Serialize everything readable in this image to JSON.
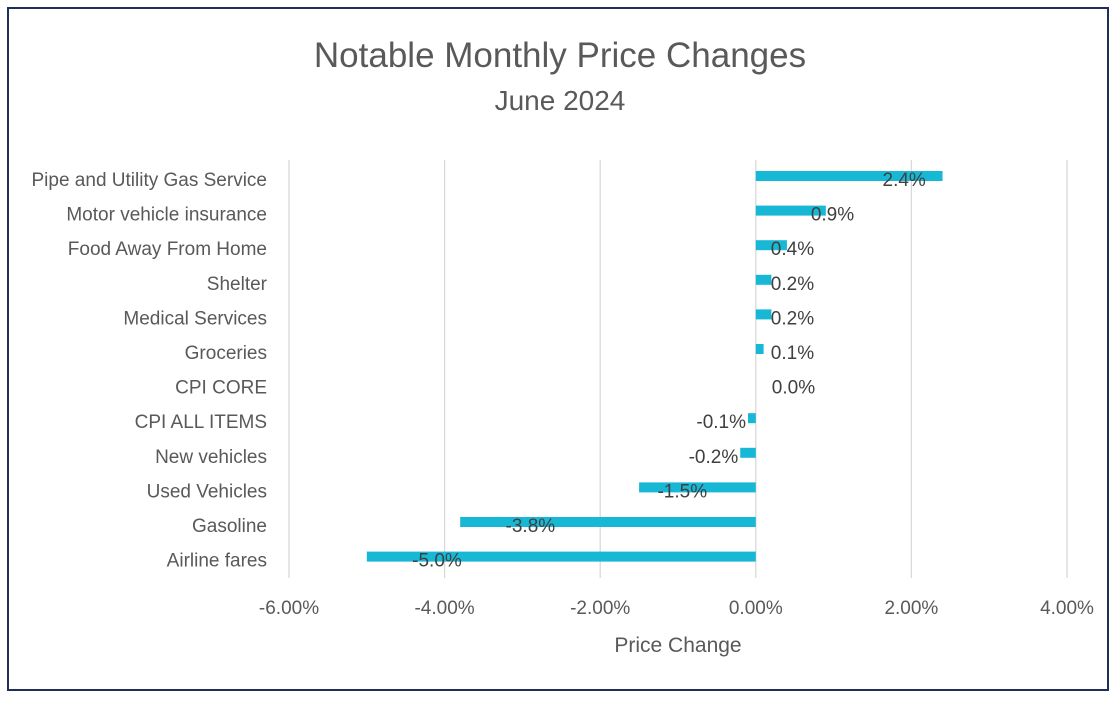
{
  "chart_data": {
    "type": "bar",
    "orientation": "horizontal",
    "title": "Notable Monthly Price Changes",
    "subtitle": "June 2024",
    "xlabel": "Price Change",
    "ylabel": "",
    "xlim": [
      -0.06,
      0.04
    ],
    "x_ticks": [
      -0.06,
      -0.04,
      -0.02,
      0.0,
      0.02,
      0.04
    ],
    "x_tick_labels": [
      "-6.00%",
      "-4.00%",
      "-2.00%",
      "0.00%",
      "2.00%",
      "4.00%"
    ],
    "grid": "vertical",
    "legend": "none",
    "bar_color": "#17b8d6",
    "categories": [
      "Pipe and Utility Gas Service",
      "Motor vehicle insurance",
      "Food Away From Home",
      "Shelter",
      "Medical Services",
      "Groceries",
      "CPI CORE",
      "CPI ALL ITEMS",
      "New vehicles",
      "Used Vehicles",
      "Gasoline",
      "Airline fares"
    ],
    "values": [
      0.024,
      0.009,
      0.004,
      0.002,
      0.002,
      0.001,
      0.0,
      -0.001,
      -0.002,
      -0.015,
      -0.038,
      -0.05
    ],
    "data_labels": [
      "2.4%",
      "0.9%",
      "0.4%",
      "0.2%",
      "0.2%",
      "0.1%",
      "0.0%",
      "-0.1%",
      "-0.2%",
      "-1.5%",
      "-3.8%",
      "-5.0%"
    ]
  }
}
